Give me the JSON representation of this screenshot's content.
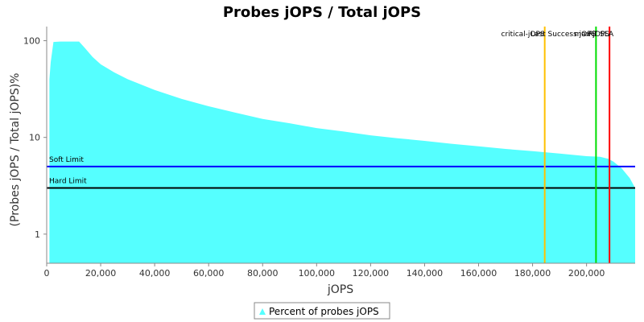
{
  "chart_data": {
    "type": "area",
    "title": "Probes jOPS / Total jOPS",
    "xlabel": "jOPS",
    "ylabel": "(Probes jOPS / Total jOPS)%",
    "y_scale": "log",
    "xlim": [
      0,
      218000
    ],
    "ylim": [
      0.5,
      140
    ],
    "x_ticks": [
      0,
      20000,
      40000,
      60000,
      80000,
      100000,
      120000,
      140000,
      160000,
      180000,
      200000
    ],
    "x_tick_labels": [
      "0",
      "20,000",
      "40,000",
      "60,000",
      "80,000",
      "100,000",
      "120,000",
      "140,000",
      "160,000",
      "180,000",
      "200,000"
    ],
    "y_ticks": [
      1,
      10,
      100
    ],
    "y_tick_labels": [
      "1",
      "10",
      "100"
    ],
    "grid": false,
    "legend_position": "bottom",
    "series": [
      {
        "name": "Percent of probes jOPS",
        "color": "#55ffff",
        "x": [
          1000,
          1500,
          2500,
          5000,
          8000,
          12000,
          14000,
          17000,
          20000,
          25000,
          30000,
          40000,
          50000,
          60000,
          70000,
          80000,
          90000,
          100000,
          110000,
          120000,
          130000,
          140000,
          150000,
          160000,
          170000,
          180000,
          190000,
          200000,
          205000,
          208000,
          210000,
          213000,
          216000,
          218000
        ],
        "y": [
          40,
          60,
          97,
          98,
          98,
          98,
          85,
          68,
          57,
          47,
          40,
          31,
          25,
          21,
          18,
          15.5,
          14,
          12.5,
          11.5,
          10.5,
          9.8,
          9.2,
          8.6,
          8.1,
          7.6,
          7.2,
          6.8,
          6.4,
          6.3,
          6.0,
          5.6,
          4.8,
          3.8,
          3.0
        ]
      }
    ],
    "horizontal_lines": [
      {
        "label": "Soft Limit",
        "y": 5,
        "color": "#0000ff"
      },
      {
        "label": "Hard Limit",
        "y": 3,
        "color": "#000000"
      }
    ],
    "vertical_lines": [
      {
        "label": "critical-jOPS",
        "x": 184500,
        "color": "#ffc000"
      },
      {
        "label": "Last Success jOPS",
        "x": 203500,
        "color": "#00dd00"
      },
      {
        "label": "max-jOPS",
        "x": 208500,
        "color": "#ff0000"
      },
      {
        "label": "RT SLA",
        "x": 210000,
        "color": "#000000",
        "hidden_line": true
      }
    ]
  }
}
